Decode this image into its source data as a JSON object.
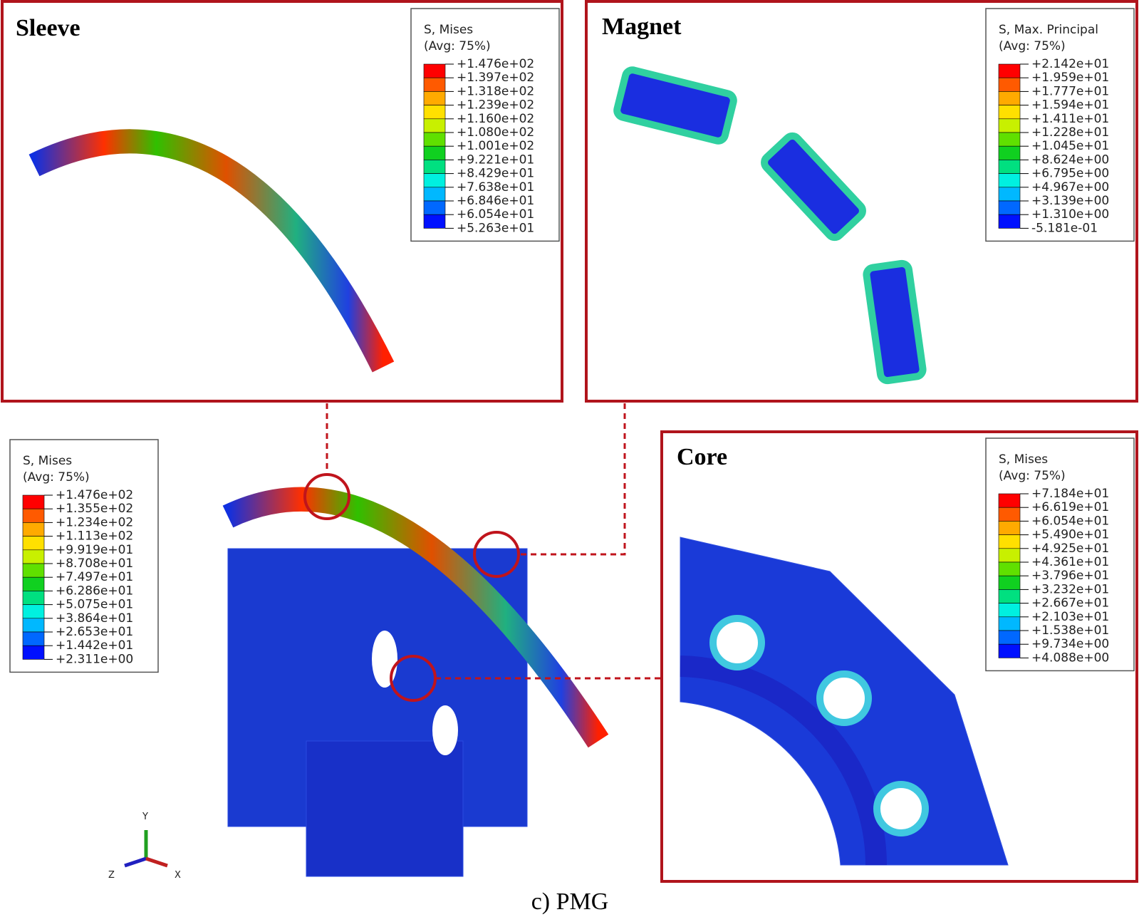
{
  "panels": [
    {
      "title": "Sleeve",
      "legend": {
        "title": [
          "S, Mises",
          "(Avg: 75%)"
        ],
        "labels": [
          "+1.476e+02",
          "+1.397e+02",
          "+1.318e+02",
          "+1.239e+02",
          "+1.160e+02",
          "+1.080e+02",
          "+1.001e+02",
          "+9.221e+01",
          "+8.429e+01",
          "+7.638e+01",
          "+6.846e+01",
          "+6.054e+01",
          "+5.263e+01"
        ]
      }
    },
    {
      "title": "Magnet",
      "legend": {
        "title": [
          "S, Max. Principal",
          "(Avg: 75%)"
        ],
        "labels": [
          "+2.142e+01",
          "+1.959e+01",
          "+1.777e+01",
          "+1.594e+01",
          "+1.411e+01",
          "+1.228e+01",
          "+1.045e+01",
          "+8.624e+00",
          "+6.795e+00",
          "+4.967e+00",
          "+3.139e+00",
          "+1.310e+00",
          "-5.181e-01"
        ]
      }
    },
    {
      "title": "Core",
      "legend": {
        "title": [
          "S, Mises",
          "(Avg: 75%)"
        ],
        "labels": [
          "+7.184e+01",
          "+6.619e+01",
          "+6.054e+01",
          "+5.490e+01",
          "+4.925e+01",
          "+4.361e+01",
          "+3.796e+01",
          "+3.232e+01",
          "+2.667e+01",
          "+2.103e+01",
          "+1.538e+01",
          "+9.734e+00",
          "+4.088e+00"
        ]
      }
    }
  ],
  "main_legend": {
    "title": [
      "S, Mises",
      "(Avg: 75%)"
    ],
    "labels": [
      "+1.476e+02",
      "+1.355e+02",
      "+1.234e+02",
      "+1.113e+02",
      "+9.919e+01",
      "+8.708e+01",
      "+7.497e+01",
      "+6.286e+01",
      "+5.075e+01",
      "+3.864e+01",
      "+2.653e+01",
      "+1.442e+01",
      "+2.311e+00"
    ]
  },
  "axes": [
    "Y",
    "Z",
    "X"
  ],
  "caption": "c) PMG"
}
